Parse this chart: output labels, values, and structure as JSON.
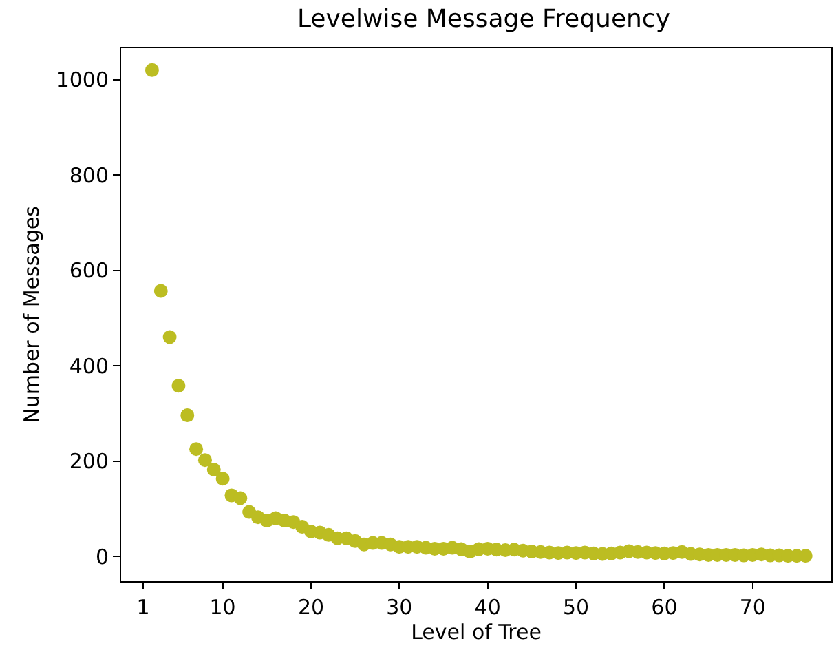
{
  "chart_data": {
    "type": "scatter",
    "title": "Levelwise Message Frequency",
    "xlabel": "Level of Tree",
    "ylabel": "Number of Messages",
    "x": [
      2,
      3,
      4,
      5,
      6,
      7,
      8,
      9,
      10,
      11,
      12,
      13,
      14,
      15,
      16,
      17,
      18,
      19,
      20,
      21,
      22,
      23,
      24,
      25,
      26,
      27,
      28,
      29,
      30,
      31,
      32,
      33,
      34,
      35,
      36,
      37,
      38,
      39,
      40,
      41,
      42,
      43,
      44,
      45,
      46,
      47,
      48,
      49,
      50,
      51,
      52,
      53,
      54,
      55,
      56,
      57,
      58,
      59,
      60,
      61,
      62,
      63,
      64,
      65,
      66,
      67,
      68,
      69,
      70,
      71,
      72,
      73,
      74,
      75,
      76
    ],
    "series": [
      {
        "color": "#bcbd22",
        "values": [
          1020,
          557,
          460,
          358,
          296,
          225,
          202,
          182,
          163,
          128,
          122,
          93,
          82,
          75,
          80,
          75,
          72,
          62,
          52,
          50,
          45,
          38,
          38,
          32,
          25,
          28,
          28,
          25,
          20,
          20,
          20,
          18,
          16,
          16,
          18,
          15,
          10,
          15,
          16,
          14,
          13,
          14,
          12,
          10,
          9,
          8,
          7,
          8,
          7,
          8,
          6,
          5,
          6,
          8,
          11,
          9,
          8,
          7,
          6,
          7,
          9,
          5,
          4,
          3,
          3,
          3,
          3,
          2,
          3,
          4,
          2,
          2,
          1,
          1,
          1
        ]
      }
    ],
    "xlim": [
      -1.5,
      78.9
    ],
    "ylim": [
      -52,
      1066
    ],
    "xticks": [
      1,
      10,
      20,
      30,
      40,
      50,
      60,
      70
    ],
    "yticks": [
      0,
      200,
      400,
      600,
      800,
      1000
    ],
    "marker": "circle"
  }
}
